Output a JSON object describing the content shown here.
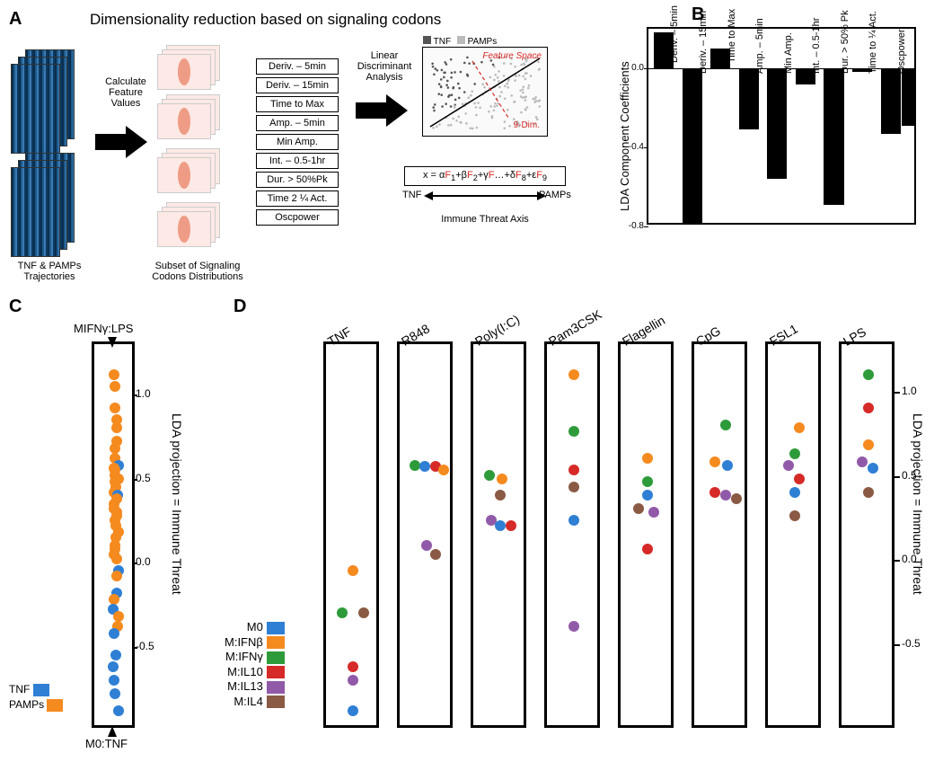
{
  "colors": {
    "tnf": "#2f7fd4",
    "pamps": "#f58a1f",
    "m0": "#2f7fd4",
    "m_ifnb": "#f58a1f",
    "m_ifng": "#2e9b3a",
    "m_il10": "#d62a28",
    "m_il13": "#915aa8",
    "m_il4": "#8a5a44",
    "bar": "#000000",
    "heatmap_dark": "#0a2e50",
    "feature_red": "#d62a28"
  },
  "panelA": {
    "label": "A",
    "title": "Dimensionality reduction based on signaling codons",
    "heatmap_label": "TNF & PAMPs\nTrajectories",
    "step1": "Calculate\nFeature\nValues",
    "violin_label": "Subset of Signaling\nCodons Distributions",
    "features": [
      "Deriv. – 5min",
      "Deriv. – 15min",
      "Time to Max",
      "Amp. – 5min",
      "Min Amp.",
      "Int. – 0.5-1hr",
      "Dur. > 50%Pk",
      "Time 2 ¼ Act.",
      "Oscpower"
    ],
    "step2": "Linear\nDiscriminant\nAnalysis",
    "scatter": {
      "legend_tnf": "TNF",
      "legend_pamps": "PAMPs",
      "feature_space": "Feature Space",
      "ninedim": "9-Dim."
    },
    "equation": "x = αF₁+βF₂+γF…+δF₈+εF₉",
    "arrow_left": "TNF",
    "arrow_right": "PAMPs",
    "axis_name": "Immune Threat Axis"
  },
  "panelB": {
    "label": "B",
    "ylabel": "LDA Component Coefficients",
    "ylim": [
      -0.8,
      0.2
    ],
    "yticks": [
      -0.8,
      -0.4,
      0.0
    ],
    "bars": [
      {
        "label": "Deriv. – 5min",
        "value": 0.18
      },
      {
        "label": "Deriv. – 15min",
        "value": -0.78
      },
      {
        "label": "Time to Max",
        "value": 0.1
      },
      {
        "label": "Amp. – 5min",
        "value": -0.31
      },
      {
        "label": "Min Amp.",
        "value": -0.56
      },
      {
        "label": "Int. – 0.5-1hr",
        "value": -0.08
      },
      {
        "label": "Dur. > 50% Pk",
        "value": -0.69
      },
      {
        "label": "Time to ¼ Act.",
        "value": -0.02
      },
      {
        "label": "Oscpower",
        "value": -0.33
      }
    ],
    "extra_tail": {
      "value": -0.29
    }
  },
  "panelC": {
    "label": "C",
    "ylabel": "LDA projection = Immune Threat",
    "yticks": [
      -0.5,
      0.0,
      0.5,
      1.0
    ],
    "ylim": [
      -1.0,
      1.3
    ],
    "top_label": "MIFNγ:LPS",
    "bottom_label": "M0:TNF",
    "legend": [
      {
        "name": "TNF",
        "color": "#2f7fd4"
      },
      {
        "name": "PAMPs",
        "color": "#f58a1f"
      }
    ],
    "points": [
      {
        "y": 1.12,
        "c": "#f58a1f"
      },
      {
        "y": 1.05,
        "c": "#f58a1f"
      },
      {
        "y": 0.92,
        "c": "#f58a1f"
      },
      {
        "y": 0.85,
        "c": "#f58a1f"
      },
      {
        "y": 0.8,
        "c": "#f58a1f"
      },
      {
        "y": 0.72,
        "c": "#f58a1f"
      },
      {
        "y": 0.68,
        "c": "#f58a1f"
      },
      {
        "y": 0.62,
        "c": "#f58a1f"
      },
      {
        "y": 0.58,
        "c": "#2f7fd4"
      },
      {
        "y": 0.56,
        "c": "#f58a1f"
      },
      {
        "y": 0.55,
        "c": "#f58a1f"
      },
      {
        "y": 0.52,
        "c": "#f58a1f"
      },
      {
        "y": 0.5,
        "c": "#f58a1f"
      },
      {
        "y": 0.48,
        "c": "#f58a1f"
      },
      {
        "y": 0.45,
        "c": "#f58a1f"
      },
      {
        "y": 0.42,
        "c": "#f58a1f"
      },
      {
        "y": 0.4,
        "c": "#2f7fd4"
      },
      {
        "y": 0.38,
        "c": "#f58a1f"
      },
      {
        "y": 0.35,
        "c": "#f58a1f"
      },
      {
        "y": 0.32,
        "c": "#f58a1f"
      },
      {
        "y": 0.3,
        "c": "#f58a1f"
      },
      {
        "y": 0.28,
        "c": "#f58a1f"
      },
      {
        "y": 0.25,
        "c": "#f58a1f"
      },
      {
        "y": 0.22,
        "c": "#f58a1f"
      },
      {
        "y": 0.18,
        "c": "#f58a1f"
      },
      {
        "y": 0.15,
        "c": "#f58a1f"
      },
      {
        "y": 0.1,
        "c": "#f58a1f"
      },
      {
        "y": 0.08,
        "c": "#f58a1f"
      },
      {
        "y": 0.05,
        "c": "#f58a1f"
      },
      {
        "y": 0.02,
        "c": "#f58a1f"
      },
      {
        "y": -0.05,
        "c": "#2f7fd4"
      },
      {
        "y": -0.08,
        "c": "#f58a1f"
      },
      {
        "y": -0.18,
        "c": "#2f7fd4"
      },
      {
        "y": -0.22,
        "c": "#f58a1f"
      },
      {
        "y": -0.28,
        "c": "#2f7fd4"
      },
      {
        "y": -0.32,
        "c": "#f58a1f"
      },
      {
        "y": -0.38,
        "c": "#f58a1f"
      },
      {
        "y": -0.42,
        "c": "#2f7fd4"
      },
      {
        "y": -0.55,
        "c": "#2f7fd4"
      },
      {
        "y": -0.62,
        "c": "#2f7fd4"
      },
      {
        "y": -0.7,
        "c": "#2f7fd4"
      },
      {
        "y": -0.78,
        "c": "#2f7fd4"
      },
      {
        "y": -0.88,
        "c": "#2f7fd4"
      }
    ]
  },
  "panelD": {
    "label": "D",
    "ylabel": "LDA projection = Immune Threat",
    "yticks": [
      -0.5,
      0.0,
      0.5,
      1.0
    ],
    "ylim": [
      -1.0,
      1.3
    ],
    "stimuli": [
      "TNF",
      "R848",
      "Poly(I:C)",
      "Pam3CSK",
      "Flagellin",
      "CpG",
      "FSL1",
      "LPS"
    ],
    "legend": [
      {
        "name": "M0",
        "color": "#2f7fd4"
      },
      {
        "name": "M:IFNβ",
        "color": "#f58a1f"
      },
      {
        "name": "M:IFNγ",
        "color": "#2e9b3a"
      },
      {
        "name": "M:IL10",
        "color": "#d62a28"
      },
      {
        "name": "M:IL13",
        "color": "#915aa8"
      },
      {
        "name": "M:IL4",
        "color": "#8a5a44"
      }
    ],
    "series": {
      "TNF": [
        {
          "c": "#f58a1f",
          "y": -0.05,
          "x": 0.5
        },
        {
          "c": "#2e9b3a",
          "y": -0.3,
          "x": 0.25
        },
        {
          "c": "#8a5a44",
          "y": -0.3,
          "x": 0.75
        },
        {
          "c": "#d62a28",
          "y": -0.62,
          "x": 0.5
        },
        {
          "c": "#915aa8",
          "y": -0.7,
          "x": 0.5
        },
        {
          "c": "#2f7fd4",
          "y": -0.88,
          "x": 0.5
        }
      ],
      "R848": [
        {
          "c": "#2e9b3a",
          "y": 0.58,
          "x": 0.22
        },
        {
          "c": "#2f7fd4",
          "y": 0.57,
          "x": 0.45
        },
        {
          "c": "#d62a28",
          "y": 0.57,
          "x": 0.7
        },
        {
          "c": "#f58a1f",
          "y": 0.55,
          "x": 0.9
        },
        {
          "c": "#915aa8",
          "y": 0.1,
          "x": 0.5
        },
        {
          "c": "#8a5a44",
          "y": 0.05,
          "x": 0.7
        }
      ],
      "Poly(I:C)": [
        {
          "c": "#2e9b3a",
          "y": 0.52,
          "x": 0.25
        },
        {
          "c": "#f58a1f",
          "y": 0.5,
          "x": 0.55
        },
        {
          "c": "#8a5a44",
          "y": 0.4,
          "x": 0.5
        },
        {
          "c": "#915aa8",
          "y": 0.25,
          "x": 0.3
        },
        {
          "c": "#2f7fd4",
          "y": 0.22,
          "x": 0.5
        },
        {
          "c": "#d62a28",
          "y": 0.22,
          "x": 0.75
        }
      ],
      "Pam3CSK": [
        {
          "c": "#f58a1f",
          "y": 1.12,
          "x": 0.5
        },
        {
          "c": "#2e9b3a",
          "y": 0.78,
          "x": 0.5
        },
        {
          "c": "#d62a28",
          "y": 0.55,
          "x": 0.5
        },
        {
          "c": "#8a5a44",
          "y": 0.45,
          "x": 0.5
        },
        {
          "c": "#2f7fd4",
          "y": 0.25,
          "x": 0.5
        },
        {
          "c": "#915aa8",
          "y": -0.38,
          "x": 0.5
        }
      ],
      "Flagellin": [
        {
          "c": "#f58a1f",
          "y": 0.62,
          "x": 0.5
        },
        {
          "c": "#2e9b3a",
          "y": 0.48,
          "x": 0.5
        },
        {
          "c": "#2f7fd4",
          "y": 0.4,
          "x": 0.5
        },
        {
          "c": "#8a5a44",
          "y": 0.32,
          "x": 0.3
        },
        {
          "c": "#915aa8",
          "y": 0.3,
          "x": 0.65
        },
        {
          "c": "#d62a28",
          "y": 0.08,
          "x": 0.5
        }
      ],
      "CpG": [
        {
          "c": "#2e9b3a",
          "y": 0.82,
          "x": 0.6
        },
        {
          "c": "#f58a1f",
          "y": 0.6,
          "x": 0.35
        },
        {
          "c": "#2f7fd4",
          "y": 0.58,
          "x": 0.65
        },
        {
          "c": "#d62a28",
          "y": 0.42,
          "x": 0.35
        },
        {
          "c": "#915aa8",
          "y": 0.4,
          "x": 0.6
        },
        {
          "c": "#8a5a44",
          "y": 0.38,
          "x": 0.85
        }
      ],
      "FSL1": [
        {
          "c": "#f58a1f",
          "y": 0.8,
          "x": 0.6
        },
        {
          "c": "#2e9b3a",
          "y": 0.65,
          "x": 0.5
        },
        {
          "c": "#915aa8",
          "y": 0.58,
          "x": 0.35
        },
        {
          "c": "#d62a28",
          "y": 0.5,
          "x": 0.6
        },
        {
          "c": "#2f7fd4",
          "y": 0.42,
          "x": 0.5
        },
        {
          "c": "#8a5a44",
          "y": 0.28,
          "x": 0.5
        }
      ],
      "LPS": [
        {
          "c": "#2e9b3a",
          "y": 1.12,
          "x": 0.5
        },
        {
          "c": "#d62a28",
          "y": 0.92,
          "x": 0.5
        },
        {
          "c": "#f58a1f",
          "y": 0.7,
          "x": 0.5
        },
        {
          "c": "#915aa8",
          "y": 0.6,
          "x": 0.35
        },
        {
          "c": "#2f7fd4",
          "y": 0.56,
          "x": 0.6
        },
        {
          "c": "#8a5a44",
          "y": 0.42,
          "x": 0.5
        }
      ]
    }
  }
}
